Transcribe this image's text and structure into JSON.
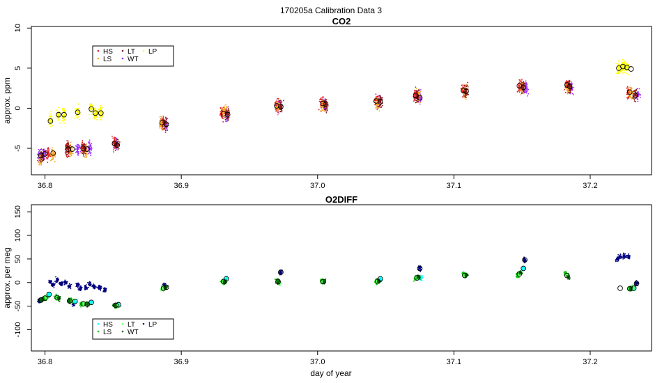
{
  "figure_title": "170205a   Calibration Data 3",
  "xlabel": "day of year",
  "chart_data": [
    {
      "type": "scatter",
      "title": "CO2",
      "ylabel": "approx. ppm",
      "xlim": [
        36.79,
        37.245
      ],
      "ylim": [
        -8.3,
        10.2
      ],
      "xticks": [
        36.8,
        36.9,
        37.0,
        37.1,
        37.2
      ],
      "xtick_labels": [
        "36.8",
        "36.9",
        "37.0",
        "37.1",
        "37.2"
      ],
      "yticks": [
        -5,
        0,
        5,
        10
      ],
      "ytick_labels": [
        "-5",
        "0",
        "5",
        "10"
      ],
      "legend": [
        {
          "label": "HS",
          "color": "#e31a1c"
        },
        {
          "label": "LT",
          "color": "#8b1a1a"
        },
        {
          "label": "LP",
          "color": "#ffff00"
        },
        {
          "label": "LS",
          "color": "#f5a623"
        },
        {
          "label": "WT",
          "color": "#9b30ff"
        }
      ],
      "series": [
        {
          "name": "WT",
          "color": "#9b30ff",
          "points": [
            [
              36.796,
              -5.9
            ],
            [
              36.799,
              -5.7
            ],
            [
              36.824,
              -5.1
            ],
            [
              36.833,
              -5.0
            ],
            [
              36.852,
              -4.5
            ],
            [
              36.889,
              -2.1
            ],
            [
              36.933,
              -0.8
            ],
            [
              36.972,
              0.2
            ],
            [
              37.005,
              0.5
            ],
            [
              37.045,
              0.8
            ],
            [
              37.075,
              1.3
            ],
            [
              37.153,
              2.5
            ],
            [
              37.186,
              2.6
            ],
            [
              37.235,
              1.6
            ]
          ]
        },
        {
          "name": "HS",
          "color": "#e31a1c",
          "points": [
            [
              36.802,
              -5.6
            ],
            [
              36.816,
              -5.0
            ],
            [
              36.828,
              -4.9
            ],
            [
              36.851,
              -4.4
            ],
            [
              36.886,
              -1.8
            ],
            [
              36.93,
              -0.6
            ],
            [
              36.97,
              0.4
            ],
            [
              37.003,
              0.6
            ],
            [
              37.043,
              1.0
            ],
            [
              37.072,
              1.7
            ],
            [
              37.107,
              2.2
            ],
            [
              37.148,
              2.7
            ],
            [
              37.183,
              2.8
            ],
            [
              37.228,
              2.0
            ]
          ]
        },
        {
          "name": "LS",
          "color": "#f5a623",
          "points": [
            [
              36.797,
              -6.3
            ],
            [
              36.806,
              -5.8
            ],
            [
              36.819,
              -5.3
            ],
            [
              36.83,
              -5.4
            ],
            [
              36.885,
              -1.9
            ],
            [
              36.932,
              -0.5
            ],
            [
              36.971,
              0.1
            ],
            [
              37.004,
              0.4
            ],
            [
              37.044,
              0.7
            ],
            [
              37.074,
              1.5
            ],
            [
              37.108,
              2.0
            ],
            [
              37.15,
              2.6
            ],
            [
              37.184,
              2.5
            ],
            [
              37.23,
              1.9
            ]
          ]
        },
        {
          "name": "LT",
          "color": "#8b1a1a",
          "points": [
            [
              36.798,
              -5.9
            ],
            [
              36.817,
              -5.1
            ],
            [
              36.829,
              -5.0
            ],
            [
              36.853,
              -4.6
            ],
            [
              36.888,
              -1.9
            ],
            [
              36.934,
              -0.8
            ],
            [
              36.973,
              0.2
            ],
            [
              37.006,
              0.5
            ],
            [
              37.046,
              0.9
            ],
            [
              37.073,
              1.5
            ],
            [
              37.109,
              2.1
            ],
            [
              37.151,
              2.6
            ],
            [
              37.185,
              2.7
            ],
            [
              37.233,
              1.7
            ]
          ]
        },
        {
          "name": "LP",
          "color": "#ffff00",
          "points": [
            [
              36.804,
              -1.6
            ],
            [
              36.81,
              -0.8
            ],
            [
              36.814,
              -0.8
            ],
            [
              36.824,
              -0.5
            ],
            [
              36.834,
              -0.1
            ],
            [
              36.837,
              -0.6
            ],
            [
              36.841,
              -0.6
            ],
            [
              37.221,
              5.0
            ],
            [
              37.224,
              5.2
            ],
            [
              37.227,
              5.1
            ]
          ]
        }
      ],
      "means": [
        [
          36.797,
          -5.9
        ],
        [
          36.8,
          -5.7
        ],
        [
          36.804,
          -1.6
        ],
        [
          36.806,
          -5.6
        ],
        [
          36.81,
          -0.8
        ],
        [
          36.814,
          -0.8
        ],
        [
          36.817,
          -5.1
        ],
        [
          36.82,
          -5.1
        ],
        [
          36.824,
          -0.5
        ],
        [
          36.828,
          -5.0
        ],
        [
          36.831,
          -5.1
        ],
        [
          36.834,
          -0.1
        ],
        [
          36.837,
          -0.6
        ],
        [
          36.841,
          -0.6
        ],
        [
          36.851,
          -4.4
        ],
        [
          36.853,
          -4.6
        ],
        [
          36.886,
          -1.8
        ],
        [
          36.889,
          -2.0
        ],
        [
          36.931,
          -0.7
        ],
        [
          36.934,
          -0.8
        ],
        [
          36.97,
          0.3
        ],
        [
          36.973,
          0.2
        ],
        [
          37.004,
          0.6
        ],
        [
          37.006,
          0.5
        ],
        [
          37.043,
          0.9
        ],
        [
          37.046,
          0.8
        ],
        [
          37.072,
          1.6
        ],
        [
          37.075,
          1.3
        ],
        [
          37.107,
          2.2
        ],
        [
          37.109,
          2.1
        ],
        [
          37.148,
          2.8
        ],
        [
          37.151,
          2.6
        ],
        [
          37.183,
          2.9
        ],
        [
          37.185,
          2.7
        ],
        [
          37.221,
          5.0
        ],
        [
          37.224,
          5.2
        ],
        [
          37.227,
          5.1
        ],
        [
          37.23,
          4.9
        ],
        [
          37.229,
          2.0
        ],
        [
          37.233,
          1.6
        ]
      ]
    },
    {
      "type": "scatter",
      "title": "O2DIFF",
      "ylabel": "approx. per meg",
      "xlim": [
        36.79,
        37.245
      ],
      "ylim": [
        -145,
        165
      ],
      "xticks": [
        36.8,
        36.9,
        37.0,
        37.1,
        37.2
      ],
      "xtick_labels": [
        "36.8",
        "36.9",
        "37.0",
        "37.1",
        "37.2"
      ],
      "yticks": [
        -100,
        -50,
        0,
        50,
        100,
        150
      ],
      "ytick_labels": [
        "-100",
        "-50",
        "0",
        "50",
        "100",
        "150"
      ],
      "legend": [
        {
          "label": "HS",
          "color": "#00ffff"
        },
        {
          "label": "LT",
          "color": "#66ff66"
        },
        {
          "label": "LP",
          "color": "#000080"
        },
        {
          "label": "LS",
          "color": "#00cc00"
        },
        {
          "label": "WT",
          "color": "#006400"
        }
      ],
      "series": [
        {
          "name": "LP",
          "color": "#000080",
          "points": [
            [
              36.796,
              -38
            ],
            [
              36.798,
              -36
            ],
            [
              36.802,
              -30
            ],
            [
              36.804,
              0
            ],
            [
              36.806,
              -5
            ],
            [
              36.809,
              5
            ],
            [
              36.812,
              -2
            ],
            [
              36.815,
              0
            ],
            [
              36.818,
              -8
            ],
            [
              36.821,
              -45
            ],
            [
              36.824,
              -5
            ],
            [
              36.826,
              -12
            ],
            [
              36.83,
              -10
            ],
            [
              36.833,
              -3
            ],
            [
              36.836,
              -8
            ],
            [
              36.84,
              -10
            ],
            [
              36.844,
              -15
            ],
            [
              36.888,
              -6
            ],
            [
              36.973,
              22
            ],
            [
              37.075,
              30
            ],
            [
              37.152,
              48
            ],
            [
              37.22,
              50
            ],
            [
              37.222,
              55
            ],
            [
              37.225,
              56
            ],
            [
              37.228,
              55
            ],
            [
              37.234,
              -2
            ]
          ]
        },
        {
          "name": "HS",
          "color": "#00ffff",
          "points": [
            [
              36.803,
              -25
            ],
            [
              36.822,
              -40
            ],
            [
              36.834,
              -42
            ],
            [
              36.854,
              -47
            ],
            [
              36.933,
              8
            ],
            [
              37.046,
              8
            ],
            [
              37.076,
              10
            ],
            [
              37.151,
              30
            ],
            [
              37.232,
              -12
            ]
          ]
        },
        {
          "name": "LS",
          "color": "#00cc00",
          "points": [
            [
              36.8,
              -33
            ],
            [
              36.808,
              -30
            ],
            [
              36.819,
              -38
            ],
            [
              36.827,
              -45
            ],
            [
              36.852,
              -50
            ],
            [
              36.887,
              -12
            ],
            [
              36.93,
              3
            ],
            [
              36.97,
              3
            ],
            [
              37.003,
              3
            ],
            [
              37.043,
              2
            ],
            [
              37.072,
              9
            ],
            [
              37.107,
              17
            ],
            [
              37.147,
              16
            ],
            [
              37.182,
              19
            ],
            [
              37.229,
              -13
            ]
          ]
        },
        {
          "name": "LT",
          "color": "#66ff66",
          "points": [
            [
              36.801,
              -30
            ],
            [
              36.809,
              -32
            ],
            [
              36.82,
              -40
            ],
            [
              36.829,
              -45
            ],
            [
              36.853,
              -48
            ],
            [
              36.886,
              -14
            ],
            [
              36.931,
              0
            ],
            [
              36.972,
              -1
            ],
            [
              37.004,
              1
            ],
            [
              37.044,
              4
            ],
            [
              37.073,
              10
            ],
            [
              37.108,
              15
            ],
            [
              37.148,
              18
            ],
            [
              37.183,
              15
            ],
            [
              37.231,
              -10
            ]
          ]
        },
        {
          "name": "WT",
          "color": "#006400",
          "points": [
            [
              36.798,
              -37
            ],
            [
              36.81,
              -33
            ],
            [
              36.818,
              -39
            ],
            [
              36.831,
              -46
            ],
            [
              36.851,
              -48
            ],
            [
              36.889,
              -10
            ],
            [
              36.932,
              2
            ],
            [
              36.971,
              2
            ],
            [
              37.005,
              2
            ],
            [
              37.045,
              3
            ],
            [
              37.074,
              12
            ],
            [
              37.109,
              15
            ],
            [
              37.149,
              20
            ],
            [
              37.184,
              12
            ],
            [
              37.23,
              -12
            ]
          ]
        }
      ],
      "means": [
        [
          36.797,
          -37
        ],
        [
          36.8,
          -33
        ],
        [
          36.803,
          -25
        ],
        [
          36.809,
          -32
        ],
        [
          36.818,
          -39
        ],
        [
          36.822,
          -40
        ],
        [
          36.828,
          -45
        ],
        [
          36.831,
          -46
        ],
        [
          36.834,
          -42
        ],
        [
          36.852,
          -48
        ],
        [
          36.854,
          -47
        ],
        [
          36.887,
          -12
        ],
        [
          36.889,
          -10
        ],
        [
          36.931,
          2
        ],
        [
          36.933,
          8
        ],
        [
          36.971,
          2
        ],
        [
          36.973,
          22
        ],
        [
          37.004,
          2
        ],
        [
          37.044,
          3
        ],
        [
          37.046,
          8
        ],
        [
          37.073,
          10
        ],
        [
          37.075,
          30
        ],
        [
          37.108,
          15
        ],
        [
          37.148,
          18
        ],
        [
          37.151,
          30
        ],
        [
          37.152,
          48
        ],
        [
          37.183,
          15
        ],
        [
          37.222,
          -12
        ],
        [
          37.229,
          -13
        ],
        [
          37.232,
          -12
        ],
        [
          37.234,
          -2
        ]
      ]
    }
  ]
}
